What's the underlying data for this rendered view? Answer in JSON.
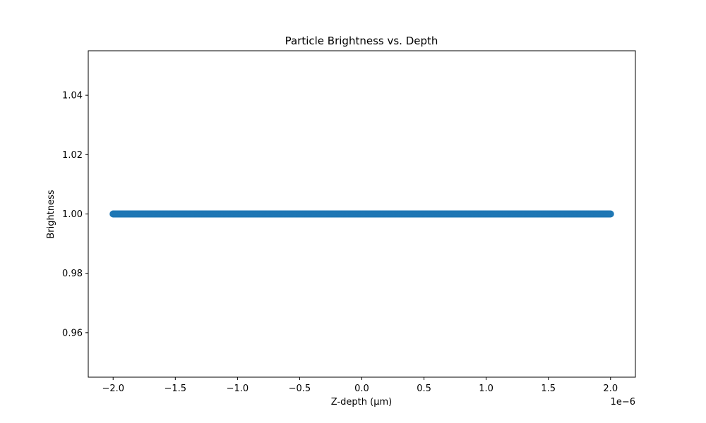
{
  "chart_data": {
    "type": "scatter",
    "title": "Particle Brightness vs. Depth",
    "xlabel": "Z-depth (μm)",
    "ylabel": "Brightness",
    "x_offset_label": "1e−6",
    "xlim": [
      -2.2e-06,
      2.2e-06
    ],
    "ylim": [
      0.945,
      1.055
    ],
    "x_ticks": [
      -2e-06,
      -1.5e-06,
      -1e-06,
      -5e-07,
      0.0,
      5e-07,
      1e-06,
      1.5e-06,
      2e-06
    ],
    "x_tick_labels": [
      "−2.0",
      "−1.5",
      "−1.0",
      "−0.5",
      "0.0",
      "0.5",
      "1.0",
      "1.5",
      "2.0"
    ],
    "y_ticks": [
      0.96,
      0.98,
      1.0,
      1.02,
      1.04
    ],
    "y_tick_labels": [
      "0.96",
      "0.98",
      "1.00",
      "1.02",
      "1.04"
    ],
    "grid": false,
    "marker_color": "#1f77b4",
    "series": [
      {
        "x_range": [
          -2e-06,
          2e-06
        ],
        "n_points": 1000,
        "y_constant": 1.0
      }
    ]
  }
}
